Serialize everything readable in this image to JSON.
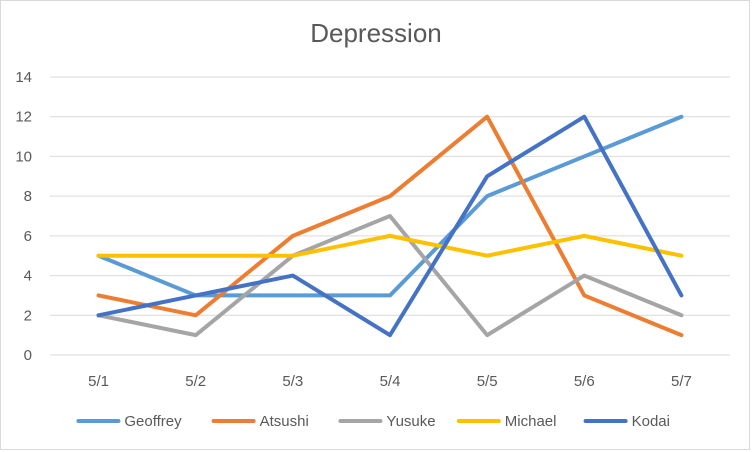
{
  "chart_data": {
    "type": "line",
    "title": "Depression",
    "xlabel": "",
    "ylabel": "",
    "categories": [
      "5/1",
      "5/2",
      "5/3",
      "5/4",
      "5/5",
      "5/6",
      "5/7"
    ],
    "ylim": [
      0,
      14
    ],
    "yticks": [
      0,
      2,
      4,
      6,
      8,
      10,
      12,
      14
    ],
    "grid": true,
    "legend_position": "bottom",
    "series": [
      {
        "name": "Geoffrey",
        "color": "#5b9bd5",
        "values": [
          5,
          3,
          3,
          3,
          8,
          10,
          12
        ]
      },
      {
        "name": "Atsushi",
        "color": "#ed7d31",
        "values": [
          3,
          2,
          6,
          8,
          12,
          3,
          1
        ]
      },
      {
        "name": "Yusuke",
        "color": "#a5a5a5",
        "values": [
          2,
          1,
          5,
          7,
          1,
          4,
          2
        ]
      },
      {
        "name": "Michael",
        "color": "#ffc000",
        "values": [
          5,
          5,
          5,
          6,
          5,
          6,
          5
        ]
      },
      {
        "name": "Kodai",
        "color": "#4472c4",
        "values": [
          2,
          3,
          4,
          1,
          9,
          12,
          3
        ]
      }
    ]
  }
}
